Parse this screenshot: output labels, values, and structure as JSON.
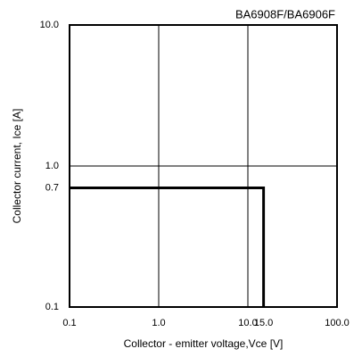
{
  "chart_data": {
    "type": "line",
    "title": "BA6908F/BA6906F",
    "xlabel": "Collector - emitter voltage,Vce [V]",
    "ylabel": "Collector current, Ice [A]",
    "x": [
      0.1,
      15,
      15
    ],
    "series": [
      {
        "color": "#000000",
        "values": [
          0.7,
          0.7,
          0.1
        ]
      }
    ],
    "xscale": "log",
    "yscale": "log",
    "xlim": [
      0.1,
      100
    ],
    "ylim": [
      0.1,
      10
    ],
    "xticks": [
      0.1,
      {
        "value": 1,
        "label": "1.0"
      },
      {
        "value": 10,
        "label": "10.0"
      },
      {
        "value": 15,
        "label": "15.0"
      },
      {
        "value": 100,
        "label": "100.0"
      }
    ],
    "yticks": [
      0.1,
      0.7,
      {
        "value": 1,
        "label": "1.0"
      },
      {
        "value": 10,
        "label": "10.0"
      }
    ],
    "grid": true
  }
}
